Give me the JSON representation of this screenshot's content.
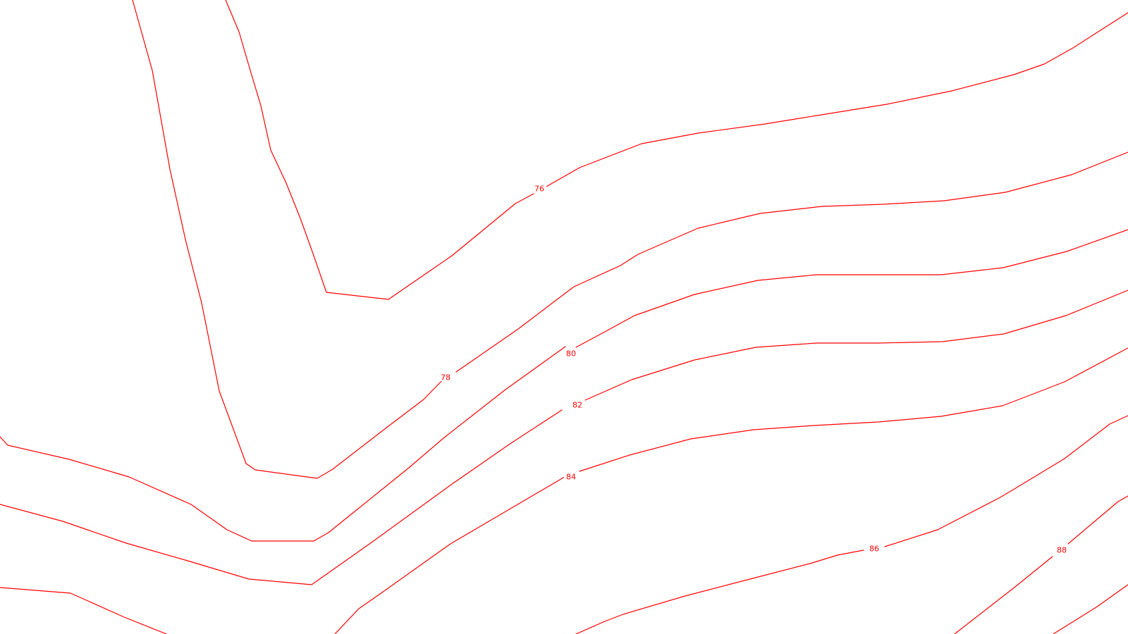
{
  "map": {
    "line_color": "#ff0000",
    "background": "#ffffff",
    "contour_levels": [
      76,
      78,
      80,
      82,
      84,
      86,
      88
    ],
    "labels": {
      "c76": "76",
      "c78": "78",
      "c80": "80",
      "c82": "82",
      "c84": "84",
      "c86": "86",
      "c88": "88"
    }
  }
}
